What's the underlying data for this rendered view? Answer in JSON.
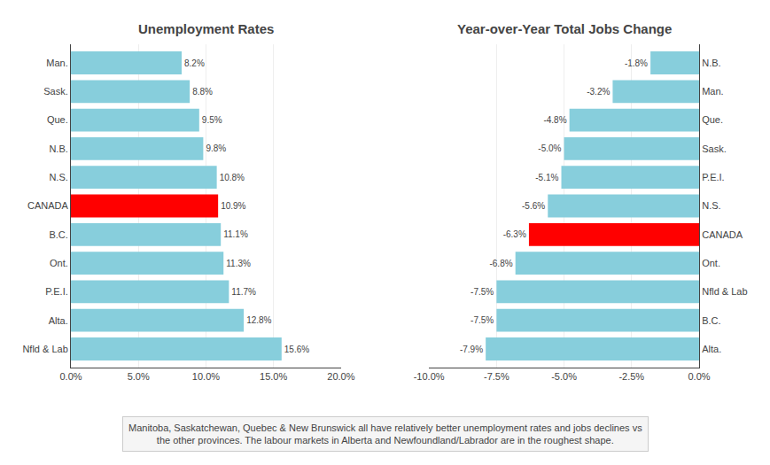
{
  "chart_data": [
    {
      "type": "bar",
      "orientation": "horizontal",
      "title": "Unemployment Rates",
      "categories": [
        "Man.",
        "Sask.",
        "Que.",
        "N.B.",
        "N.S.",
        "CANADA",
        "B.C.",
        "Ont.",
        "P.E.I.",
        "Alta.",
        "Nfld & Lab"
      ],
      "values": [
        8.2,
        8.8,
        9.5,
        9.8,
        10.8,
        10.9,
        11.1,
        11.3,
        11.7,
        12.8,
        15.6
      ],
      "value_labels": [
        "8.2%",
        "8.8%",
        "9.5%",
        "9.8%",
        "10.8%",
        "10.9%",
        "11.1%",
        "11.3%",
        "11.7%",
        "12.8%",
        "15.6%"
      ],
      "colors": [
        "#87CEDC",
        "#87CEDC",
        "#87CEDC",
        "#87CEDC",
        "#87CEDC",
        "#FF0000",
        "#87CEDC",
        "#87CEDC",
        "#87CEDC",
        "#87CEDC",
        "#87CEDC"
      ],
      "data_labels": true,
      "xlim": [
        0,
        20
      ],
      "xticks": [
        {
          "value": 0,
          "label": "0.0%"
        },
        {
          "value": 5,
          "label": "5.0%"
        },
        {
          "value": 10,
          "label": "10.0%"
        },
        {
          "value": 15,
          "label": "15.0%"
        },
        {
          "value": 20,
          "label": "20.0%"
        }
      ],
      "grid": true,
      "annotations": [
        "Manitoba, Saskatchewan, Quebec & New Brunswick all have relatively better unemployment rates and jobs declines vs",
        "the other provinces. The labour markets in Alberta and Newfoundland/Labrador are in the roughest shape."
      ]
    },
    {
      "type": "bar",
      "orientation": "horizontal",
      "title": "Year-over-Year Total Jobs Change",
      "categories": [
        "N.B.",
        "Man.",
        "Que.",
        "Sask.",
        "P.E.I.",
        "N.S.",
        "CANADA",
        "Ont.",
        "Nfld & Lab",
        "B.C.",
        "Alta."
      ],
      "values": [
        -1.8,
        -3.2,
        -4.8,
        -5.0,
        -5.1,
        -5.6,
        -6.3,
        -6.8,
        -7.5,
        -7.5,
        -7.9
      ],
      "value_labels": [
        "-1.8%",
        "-3.2%",
        "-4.8%",
        "-5.0%",
        "-5.1%",
        "-5.6%",
        "-6.3%",
        "-6.8%",
        "-7.5%",
        "-7.5%",
        "-7.9%"
      ],
      "colors": [
        "#87CEDC",
        "#87CEDC",
        "#87CEDC",
        "#87CEDC",
        "#87CEDC",
        "#87CEDC",
        "#FF0000",
        "#87CEDC",
        "#87CEDC",
        "#87CEDC",
        "#87CEDC"
      ],
      "data_labels": true,
      "xlim": [
        -10,
        0
      ],
      "xticks": [
        {
          "value": -10,
          "label": "-10.0%"
        },
        {
          "value": -7.5,
          "label": "-7.5%"
        },
        {
          "value": -5,
          "label": "-5.0%"
        },
        {
          "value": -2.5,
          "label": "-2.5%"
        },
        {
          "value": 0,
          "label": "0.0%"
        }
      ],
      "grid": true
    }
  ]
}
